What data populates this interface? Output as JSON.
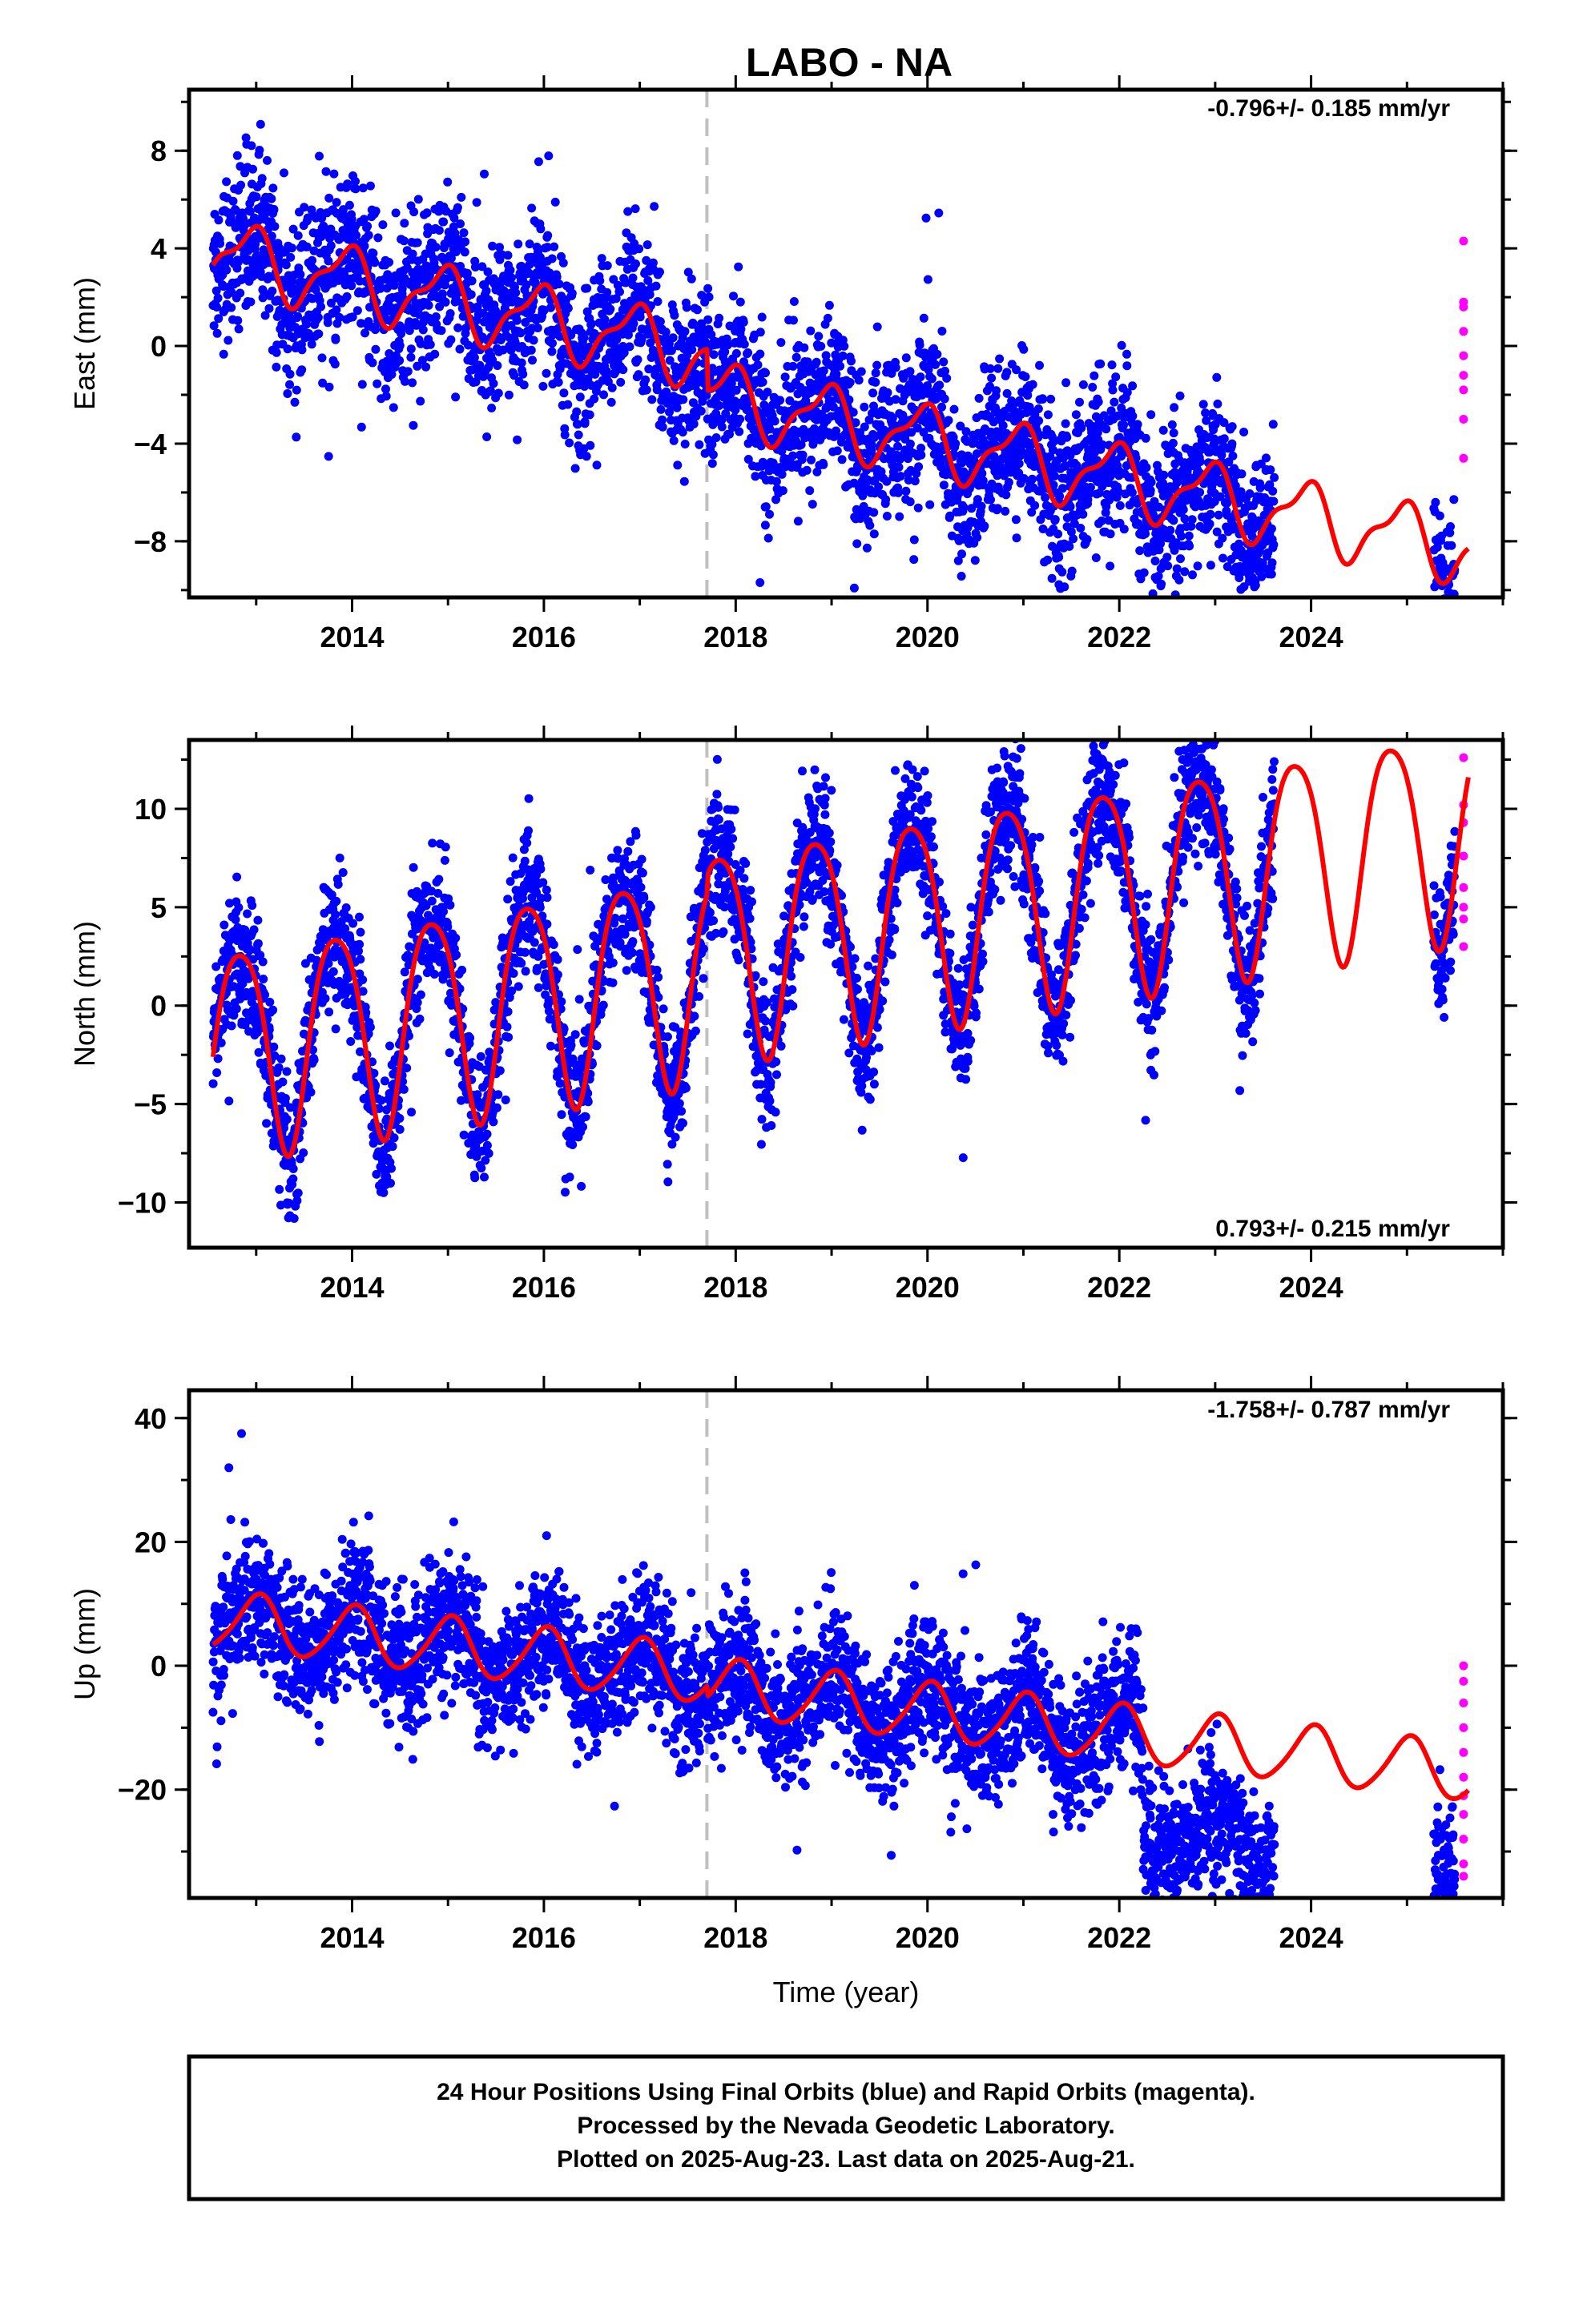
{
  "title": "LABO - NA",
  "colors": {
    "final": "#0000ff",
    "rapid": "#ff00ff",
    "model": "#ff0000",
    "event": "#c0c0c0"
  },
  "footer": {
    "line1": "24 Hour Positions Using Final Orbits (blue) and Rapid Orbits (magenta).",
    "line2": "Processed by the Nevada Geodetic Laboratory.",
    "line3": "Plotted on 2025-Aug-23. Last data on 2025-Aug-21."
  },
  "chart_data": [
    {
      "type": "scatter",
      "ylabel": "East (mm)",
      "xlabel": "",
      "rate_text": "-0.796+/- 0.185 mm/yr",
      "xlim": [
        2012.3,
        2026.0
      ],
      "ylim": [
        -10.3,
        10.5
      ],
      "xticks": [
        2014,
        2016,
        2018,
        2020,
        2022,
        2024
      ],
      "yticks": [
        -8,
        -4,
        0,
        4,
        8
      ],
      "event_x": 2017.7,
      "final_segments": [
        [
          2012.55,
          2023.62
        ],
        [
          2025.28,
          2025.5
        ]
      ],
      "rapid_range": [
        2025.5,
        2025.64
      ],
      "model": {
        "start": 2012.55,
        "end": 2025.64,
        "t0": 2012.55,
        "segments": [
          [
            2012.55,
            2013.7,
            3.8
          ],
          [
            2013.7,
            2017.7,
            3.8
          ],
          [
            2017.7,
            2025.64,
            2.1
          ]
        ],
        "slope": -0.796,
        "annual_amp": 1.3,
        "annual_phase": 2.0,
        "semi_amp": 0.5,
        "semi_phase": 0.6
      },
      "scatter_sd": 1.6,
      "rapid_values": [
        4.3,
        1.8,
        1.6,
        0.6,
        -0.4,
        -1.2,
        -1.8,
        -3.0,
        -4.6
      ]
    },
    {
      "type": "scatter",
      "ylabel": "North (mm)",
      "xlabel": "",
      "rate_text": "0.793+/- 0.215 mm/yr",
      "xlim": [
        2012.3,
        2026.0
      ],
      "ylim": [
        -12.3,
        13.5
      ],
      "xticks": [
        2014,
        2016,
        2018,
        2020,
        2022,
        2024
      ],
      "yticks": [
        -10,
        -5,
        0,
        5,
        10
      ],
      "event_x": 2017.7,
      "final_segments": [
        [
          2012.55,
          2023.62
        ],
        [
          2025.28,
          2025.5
        ]
      ],
      "rapid_range": [
        2025.5,
        2025.64
      ],
      "model": {
        "start": 2012.55,
        "end": 2025.64,
        "t0": 2012.55,
        "segments": [
          [
            2012.55,
            2017.7,
            -2.2
          ],
          [
            2017.7,
            2025.64,
            -1.3
          ]
        ],
        "slope": 0.793,
        "annual_amp": 5.3,
        "annual_phase": 2.62,
        "semi_amp": 0.8,
        "semi_phase": 0.4
      },
      "scatter_sd": 1.7,
      "rapid_values": [
        12.6,
        10.2,
        9.3,
        7.6,
        6.0,
        5.0,
        4.4,
        3.0
      ]
    },
    {
      "type": "scatter",
      "ylabel": "Up (mm)",
      "xlabel": "Time (year)",
      "rate_text": "-1.758+/- 0.787 mm/yr",
      "xlim": [
        2012.3,
        2026.0
      ],
      "ylim": [
        -37.5,
        44.5
      ],
      "xticks": [
        2014,
        2016,
        2018,
        2020,
        2022,
        2024
      ],
      "yticks": [
        -20,
        0,
        20,
        40
      ],
      "event_x": 2017.7,
      "final_segments": [
        [
          2012.55,
          2022.25
        ],
        [
          2022.25,
          2023.62
        ],
        [
          2025.28,
          2025.5
        ]
      ],
      "segment_offsets": [
        0,
        -15,
        -12
      ],
      "rapid_range": [
        2025.5,
        2025.64
      ],
      "model": {
        "start": 2012.55,
        "end": 2025.64,
        "t0": 2012.55,
        "segments": [
          [
            2012.55,
            2017.7,
            7.5
          ],
          [
            2017.7,
            2025.64,
            5.7
          ]
        ],
        "slope": -1.758,
        "annual_amp": 4.6,
        "annual_phase": 1.45,
        "semi_amp": 0.6,
        "semi_phase": 0.3
      },
      "scatter_sd": 5.5,
      "rapid_values": [
        0,
        -2.5,
        -6,
        -10,
        -14,
        -18,
        -21,
        -24,
        -28,
        -32,
        -34
      ]
    }
  ]
}
